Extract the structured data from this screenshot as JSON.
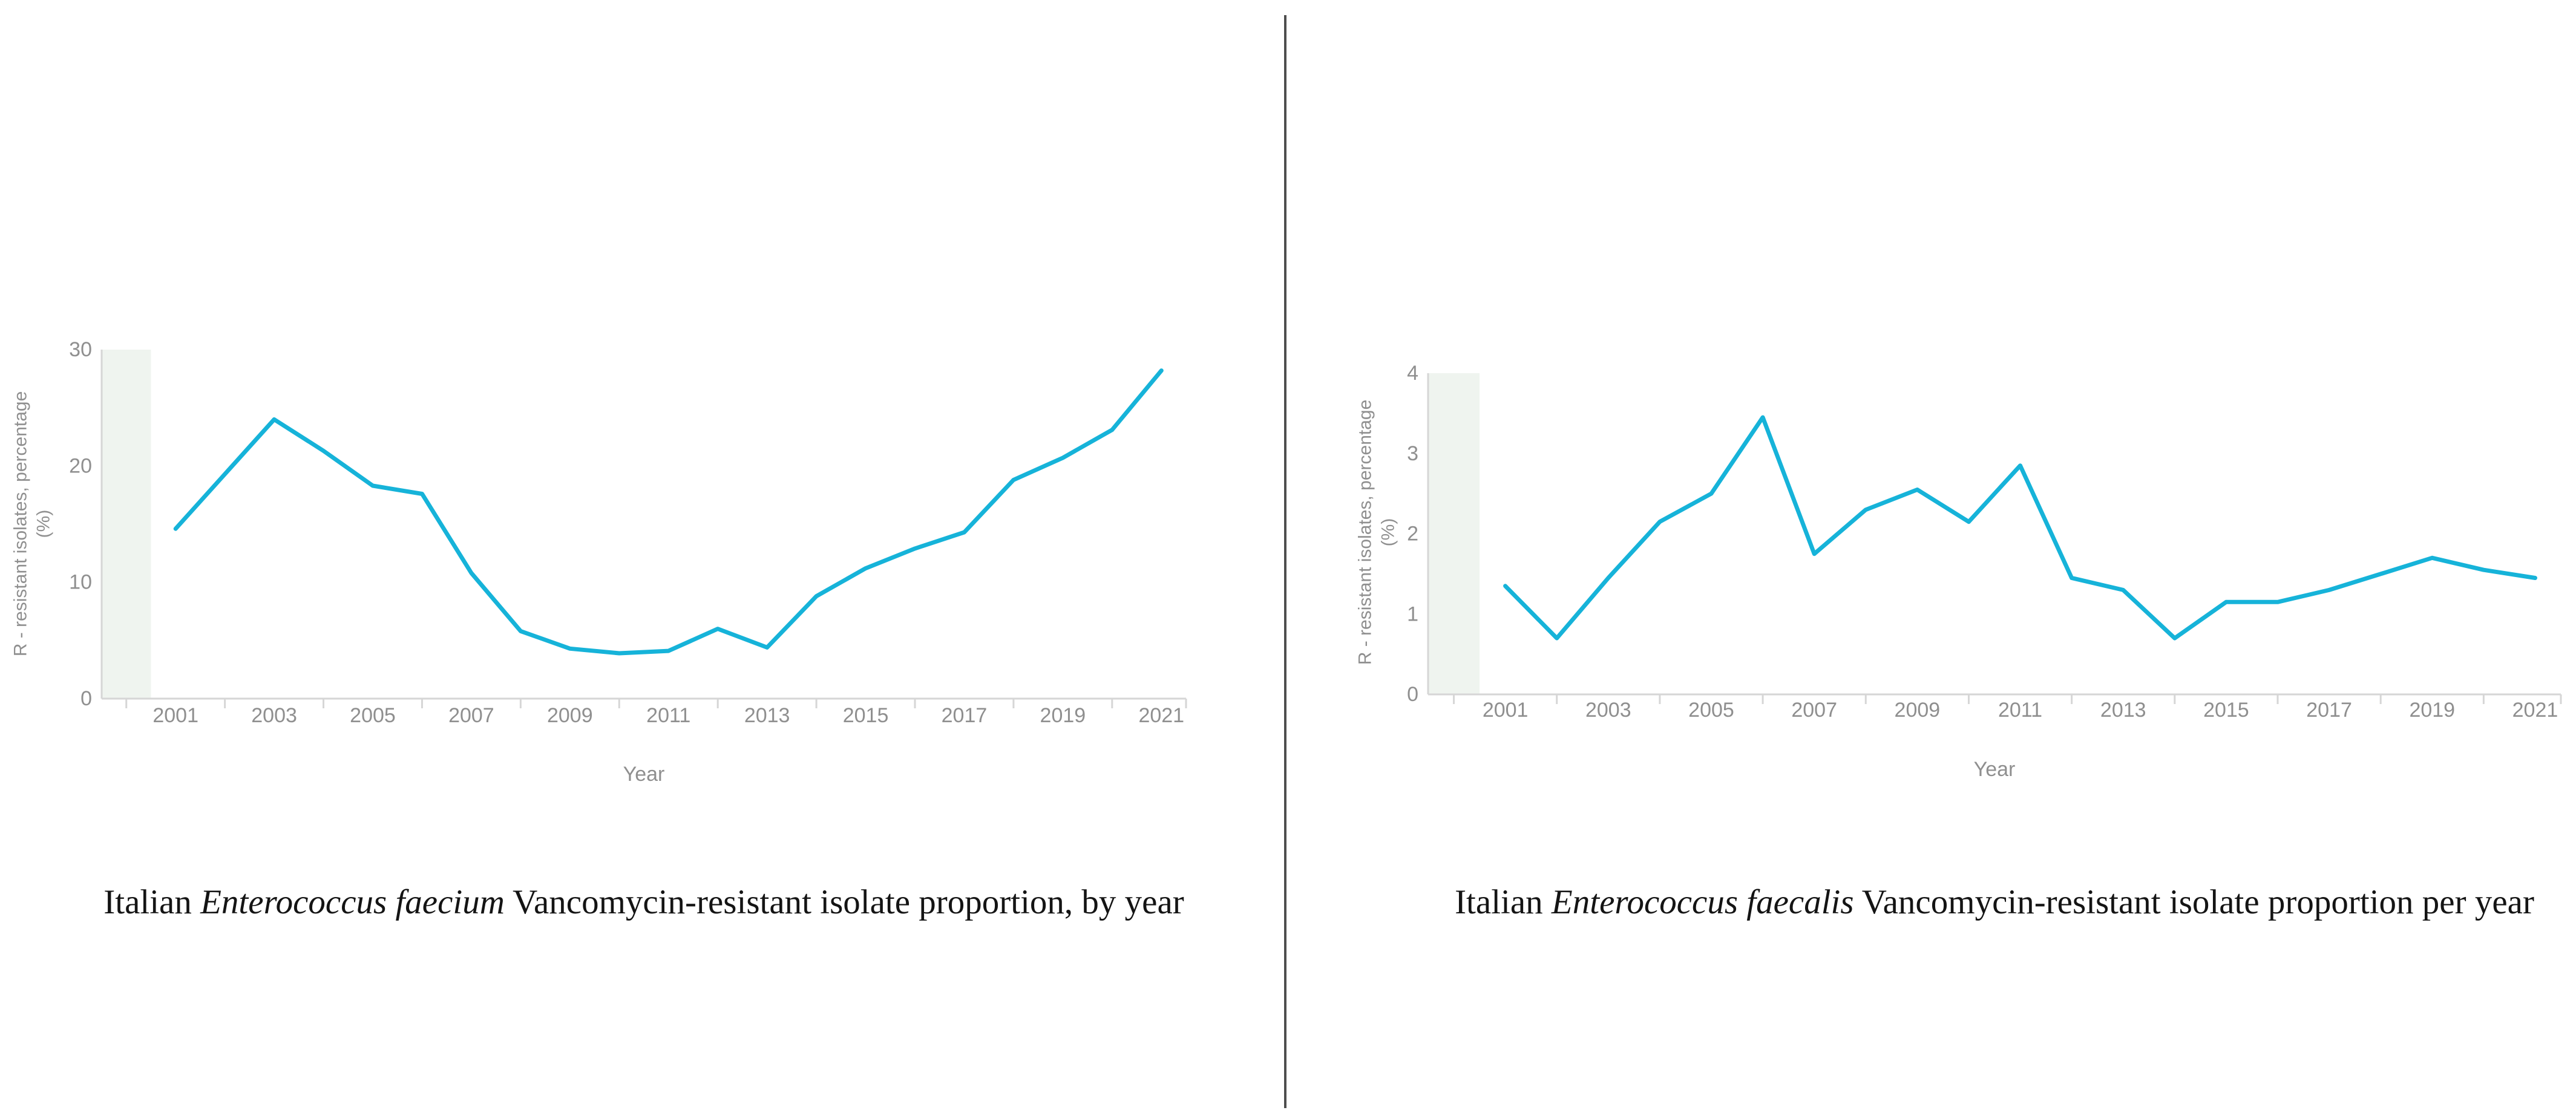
{
  "page": {
    "background_color": "#ffffff",
    "divider_color": "#4e4e4e"
  },
  "chart_data": [
    {
      "type": "line",
      "title": "Italian Enterococcus faecium Vancomycin-resistant isolate proportion, by year",
      "title_parts": {
        "prefix": "Italian ",
        "species": "Enterococcus faecium",
        "suffix": " Vancomycin-resistant isolate proportion, by year"
      },
      "xlabel": "Year",
      "ylabel": "R - resistant isolates, percentage",
      "ylabel_line2": "(%)",
      "x": [
        2001,
        2002,
        2003,
        2004,
        2005,
        2006,
        2007,
        2008,
        2009,
        2010,
        2011,
        2012,
        2013,
        2014,
        2015,
        2016,
        2017,
        2018,
        2019,
        2020,
        2021
      ],
      "values": [
        14.6,
        19.3,
        24.0,
        21.3,
        18.3,
        17.6,
        10.8,
        5.8,
        4.3,
        3.9,
        4.1,
        6.0,
        4.4,
        8.8,
        11.2,
        12.9,
        14.3,
        18.8,
        20.7,
        23.1,
        28.2
      ],
      "ylim": [
        0,
        30
      ],
      "yticks": [
        "0",
        "10",
        "20",
        "30"
      ],
      "xtick_labels": [
        "2001",
        "2003",
        "2005",
        "2007",
        "2009",
        "2011",
        "2013",
        "2015",
        "2017",
        "2019",
        "2021"
      ],
      "xlim": [
        1999.5,
        2021.5
      ],
      "no_data_band": [
        1999.5,
        2000.5
      ],
      "grid": "off",
      "legend": "none",
      "line_color": "#16b3d9",
      "band_color": "#eff4ef",
      "axis_color": "#d6d6d6",
      "tick_label_color": "#8f8f8f"
    },
    {
      "type": "line",
      "title": "Italian Enterococcus faecalis Vancomycin-resistant isolate proportion per year",
      "title_parts": {
        "prefix": "Italian ",
        "species": "Enterococcus faecalis",
        "suffix": " Vancomycin-resistant isolate proportion per year"
      },
      "xlabel": "Year",
      "ylabel": "R - resistant isolates, percentage",
      "ylabel_line2": "(%)",
      "x": [
        2001,
        2002,
        2003,
        2004,
        2005,
        2006,
        2007,
        2008,
        2009,
        2010,
        2011,
        2012,
        2013,
        2014,
        2015,
        2016,
        2017,
        2018,
        2019,
        2020,
        2021
      ],
      "values": [
        1.35,
        0.7,
        1.45,
        2.15,
        2.5,
        3.45,
        1.75,
        2.3,
        2.55,
        2.15,
        2.85,
        1.45,
        1.3,
        0.7,
        1.15,
        1.15,
        1.3,
        1.5,
        1.7,
        1.55,
        1.45
      ],
      "ylim": [
        0,
        4
      ],
      "yticks": [
        "0",
        "1",
        "2",
        "3",
        "4"
      ],
      "xtick_labels": [
        "2001",
        "2003",
        "2005",
        "2007",
        "2009",
        "2011",
        "2013",
        "2015",
        "2017",
        "2019",
        "2021"
      ],
      "xlim": [
        1999.5,
        2021.5
      ],
      "no_data_band": [
        1999.5,
        2000.5
      ],
      "grid": "off",
      "legend": "none",
      "line_color": "#16b3d9",
      "band_color": "#eff4ef",
      "axis_color": "#d6d6d6",
      "tick_label_color": "#8f8f8f"
    }
  ]
}
